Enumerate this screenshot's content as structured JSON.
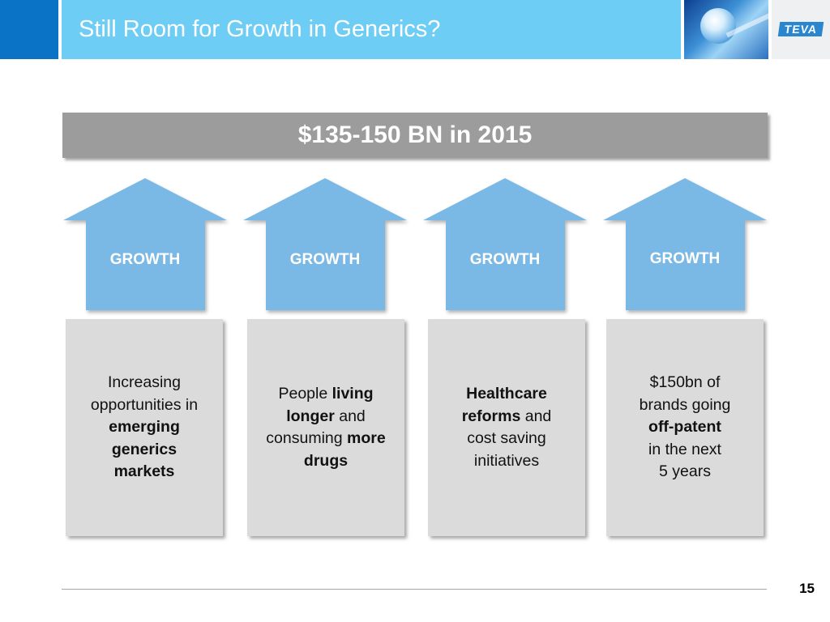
{
  "header": {
    "title": "Still Room for Growth in Generics?",
    "logo_text": "TEVA",
    "image_icon": "pharma-globe-photo"
  },
  "banner": {
    "text": "$135-150 BN in 2015"
  },
  "arrows": [
    {
      "label": "GROWTH"
    },
    {
      "label": "GROWTH"
    },
    {
      "label": "GROWTH"
    },
    {
      "label": "GROWTH"
    }
  ],
  "cards": [
    {
      "segments": [
        {
          "text": "Increasing",
          "bold": false,
          "br": true
        },
        {
          "text": "opportunities in",
          "bold": false,
          "br": true
        },
        {
          "text": "emerging",
          "bold": true,
          "br": true
        },
        {
          "text": "generics",
          "bold": true,
          "br": true
        },
        {
          "text": "markets",
          "bold": true,
          "br": false
        }
      ]
    },
    {
      "segments": [
        {
          "text": "People ",
          "bold": false,
          "br": false
        },
        {
          "text": "living",
          "bold": true,
          "br": true
        },
        {
          "text": "longer",
          "bold": true,
          "br": false
        },
        {
          "text": " and",
          "bold": false,
          "br": true
        },
        {
          "text": "consuming ",
          "bold": false,
          "br": false
        },
        {
          "text": "more",
          "bold": true,
          "br": true
        },
        {
          "text": "drugs",
          "bold": true,
          "br": false
        }
      ]
    },
    {
      "segments": [
        {
          "text": "Healthcare",
          "bold": true,
          "br": true
        },
        {
          "text": "reforms",
          "bold": true,
          "br": false
        },
        {
          "text": " and",
          "bold": false,
          "br": true
        },
        {
          "text": "cost saving",
          "bold": false,
          "br": true
        },
        {
          "text": "initiatives",
          "bold": false,
          "br": false
        }
      ]
    },
    {
      "segments": [
        {
          "text": "$150bn of",
          "bold": false,
          "br": true
        },
        {
          "text": "brands going",
          "bold": false,
          "br": true
        },
        {
          "text": "off-patent",
          "bold": true,
          "br": true
        },
        {
          "text": "in the next",
          "bold": false,
          "br": true
        },
        {
          "text": "5 years",
          "bold": false,
          "br": false
        }
      ]
    }
  ],
  "footer": {
    "page_number": "15"
  },
  "colors": {
    "header_band": "#6dcdf4",
    "header_accent": "#0b73c6",
    "banner": "#9c9c9c",
    "arrow": "#7ab8e6",
    "card": "#dbdbdb"
  }
}
